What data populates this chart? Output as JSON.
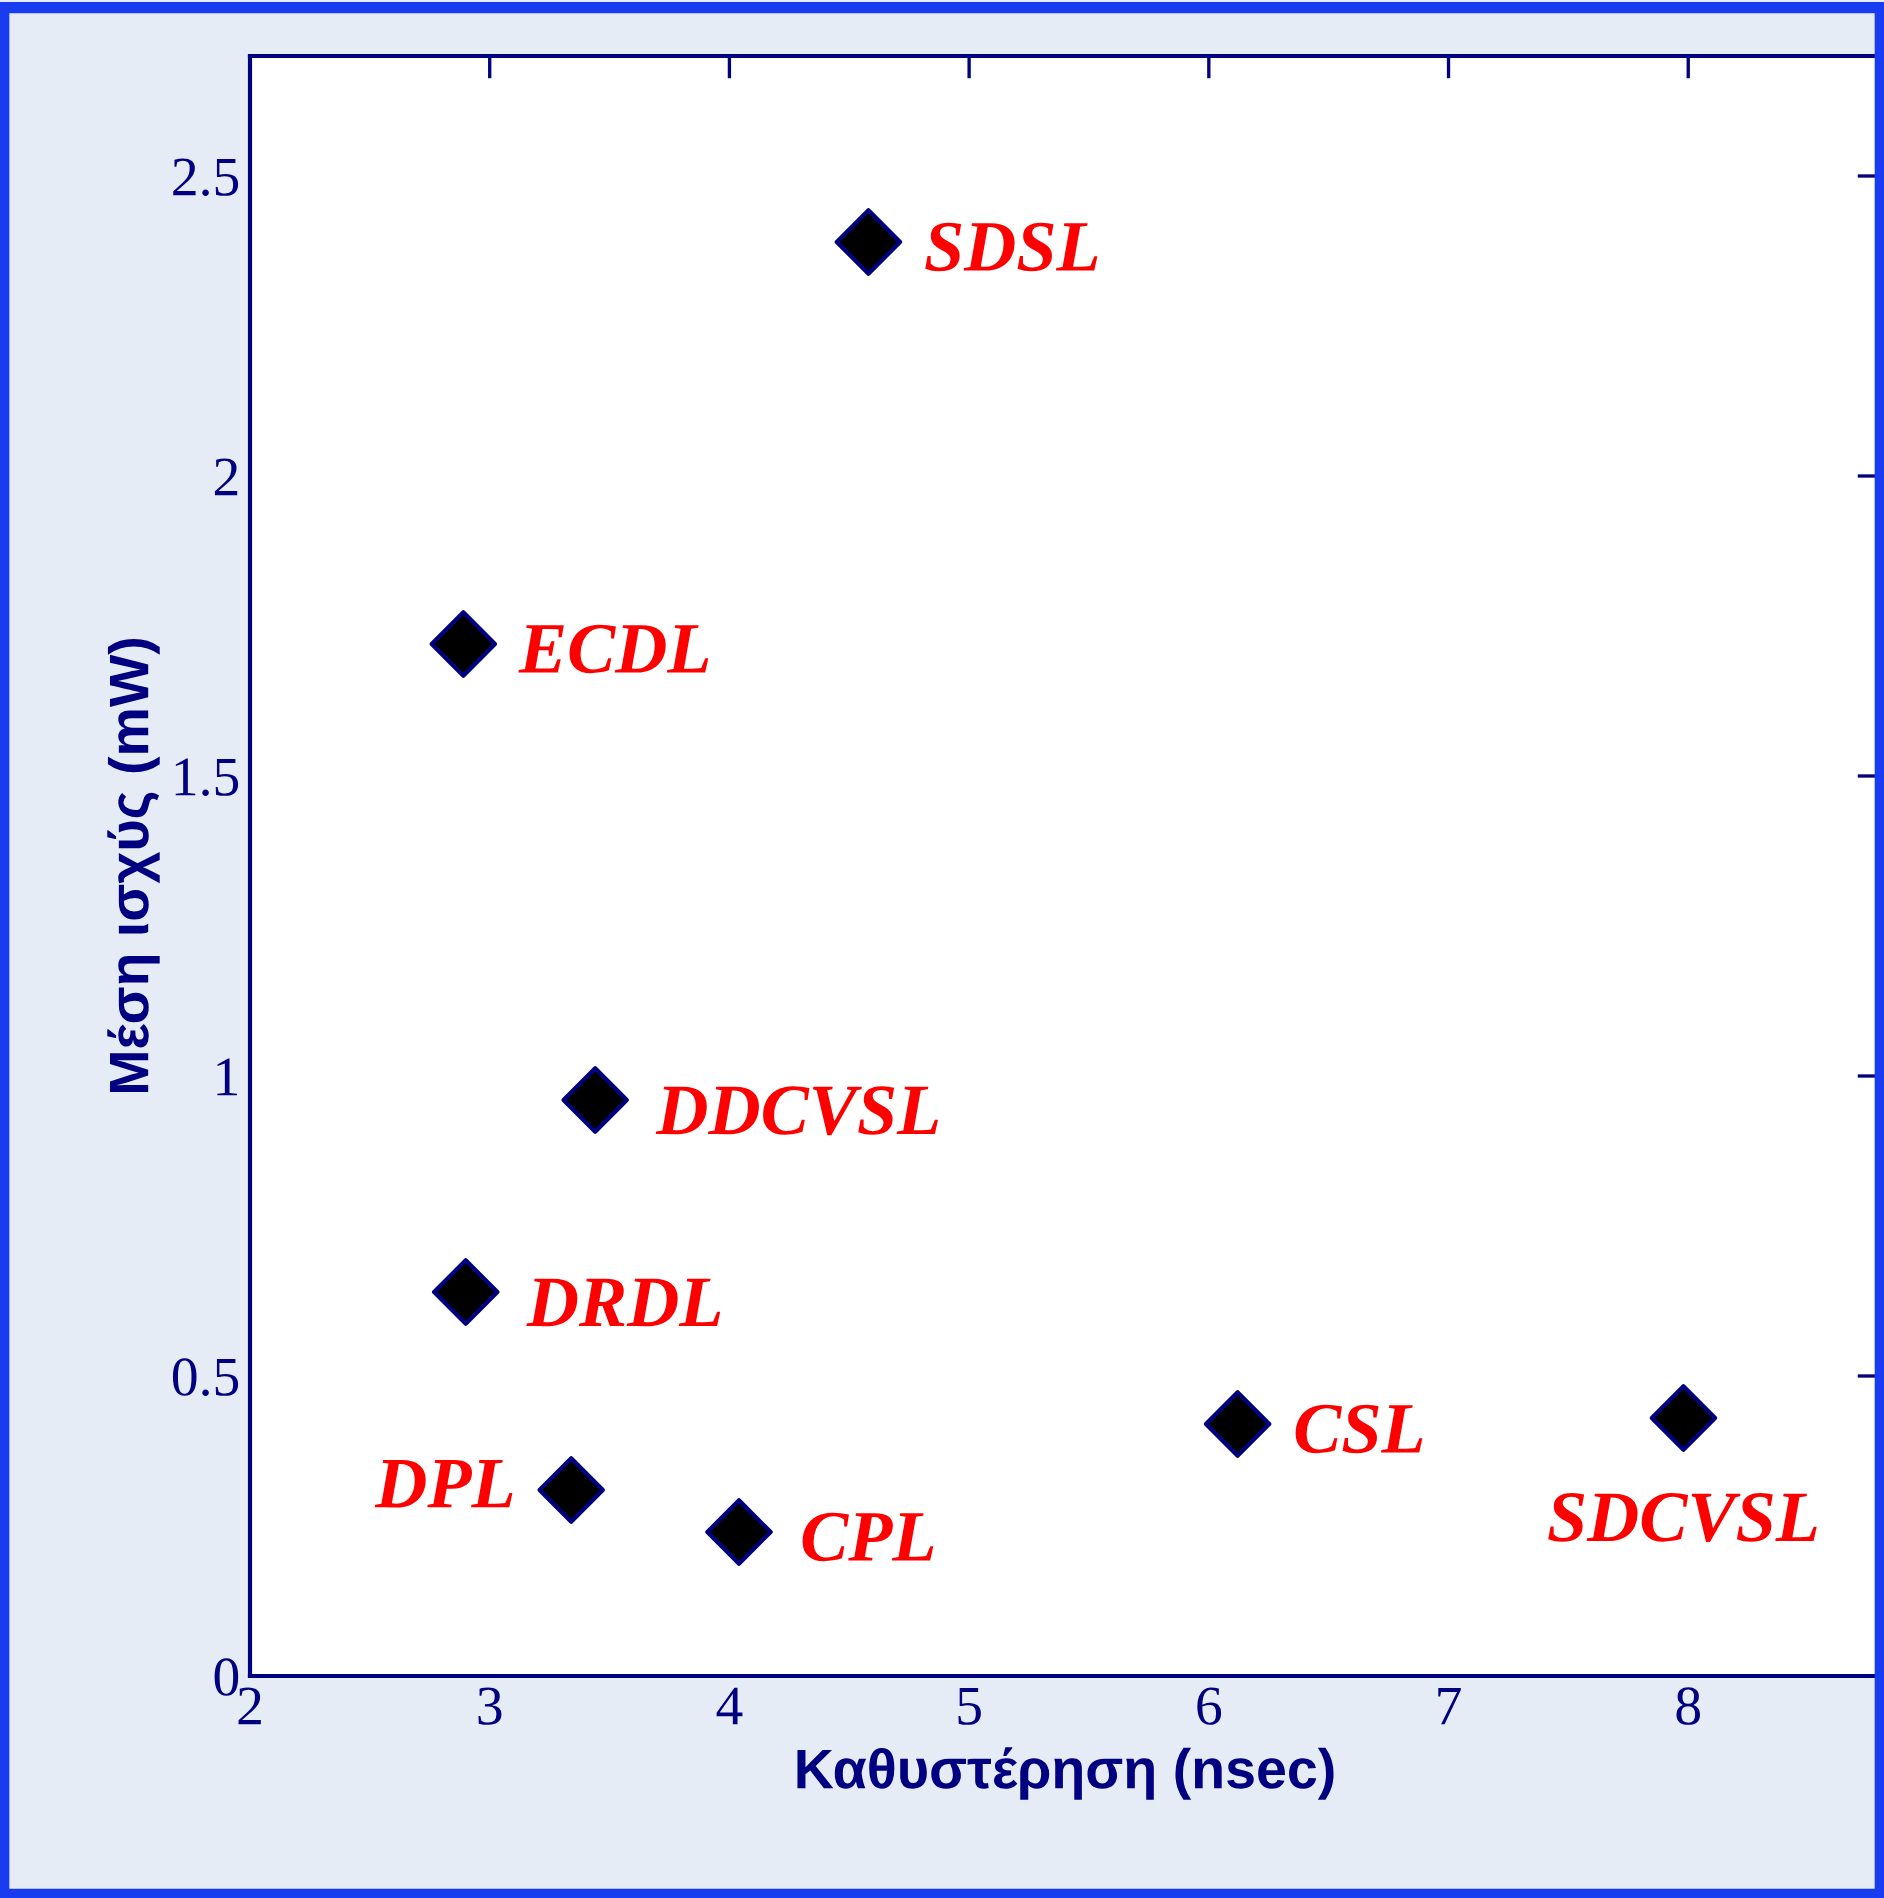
{
  "chart_data": {
    "type": "scatter",
    "xlabel": "Καθυστέρηση (nsec)",
    "ylabel": "Μέση ισχύς (mW)",
    "xlim": [
      2,
      8.8
    ],
    "ylim": [
      0,
      2.7
    ],
    "xticks": [
      2,
      3,
      4,
      5,
      6,
      7,
      8
    ],
    "yticks": [
      0,
      0.5,
      1,
      1.5,
      2,
      2.5
    ],
    "marker": "diamond",
    "grid": false,
    "legend": false,
    "series": [
      {
        "color": "#000000",
        "x": [
          4.58,
          2.89,
          3.44,
          2.9,
          3.34,
          4.04,
          6.12,
          7.98
        ],
        "values": [
          2.39,
          1.72,
          0.96,
          0.64,
          0.31,
          0.24,
          0.42,
          0.43
        ]
      }
    ],
    "annotations": [
      {
        "text": "SDSL",
        "x": 4.58,
        "y": 2.39
      },
      {
        "text": "ECDL",
        "x": 2.89,
        "y": 1.72
      },
      {
        "text": "DDCVSL",
        "x": 3.44,
        "y": 0.96
      },
      {
        "text": "DRDL",
        "x": 2.9,
        "y": 0.64
      },
      {
        "text": "DPL",
        "x": 3.34,
        "y": 0.31
      },
      {
        "text": "CPL",
        "x": 4.04,
        "y": 0.24
      },
      {
        "text": "CSL",
        "x": 6.12,
        "y": 0.42
      },
      {
        "text": "SDCVSL",
        "x": 7.98,
        "y": 0.43
      }
    ]
  }
}
